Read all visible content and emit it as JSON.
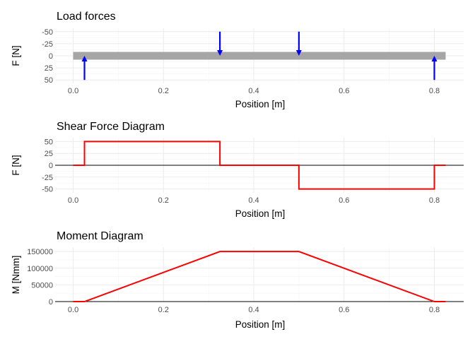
{
  "chart_data": [
    {
      "type": "beam-loads",
      "title": "Load forces",
      "xlabel": "Position [m]",
      "ylabel": "F [N]",
      "xlim": [
        -0.04,
        0.865
      ],
      "ylim": [
        -57,
        57
      ],
      "y_reversed": true,
      "x_ticks": [
        0.0,
        0.2,
        0.4,
        0.6,
        0.8
      ],
      "x_tick_labels": [
        "0.0",
        "0.2",
        "0.4",
        "0.6",
        "0.8"
      ],
      "y_ticks": [
        -50,
        -25,
        0,
        25,
        50
      ],
      "y_tick_labels": [
        "-50",
        "-25",
        "0",
        "25",
        "50"
      ],
      "beam": {
        "x_start": 0.0,
        "x_end": 0.825,
        "color": "#a6a6a6"
      },
      "arrow_color": "#0000ff",
      "forces": [
        {
          "x": 0.025,
          "F": 50
        },
        {
          "x": 0.325,
          "F": -50
        },
        {
          "x": 0.5,
          "F": -50
        },
        {
          "x": 0.8,
          "F": 50
        }
      ]
    },
    {
      "type": "line",
      "title": "Shear Force Diagram",
      "xlabel": "Position [m]",
      "ylabel": "F [N]",
      "xlim": [
        -0.04,
        0.865
      ],
      "ylim": [
        -58,
        58
      ],
      "x_ticks": [
        0.0,
        0.2,
        0.4,
        0.6,
        0.8
      ],
      "x_tick_labels": [
        "0.0",
        "0.2",
        "0.4",
        "0.6",
        "0.8"
      ],
      "y_ticks": [
        50,
        25,
        0,
        -25,
        -50
      ],
      "y_tick_labels": [
        "50",
        "25",
        "0",
        "-25",
        "-50"
      ],
      "line_color": "#ff0000",
      "x": [
        0.0,
        0.025,
        0.025,
        0.325,
        0.325,
        0.5,
        0.5,
        0.8,
        0.8,
        0.825
      ],
      "y": [
        0,
        0,
        50,
        50,
        0,
        0,
        -50,
        -50,
        0,
        0
      ]
    },
    {
      "type": "line",
      "title": "Moment Diagram",
      "xlabel": "Position [m]",
      "ylabel": "M [Nmm]",
      "xlim": [
        -0.04,
        0.865
      ],
      "ylim": [
        -2000,
        163000
      ],
      "x_ticks": [
        0.0,
        0.2,
        0.4,
        0.6,
        0.8
      ],
      "x_tick_labels": [
        "0.0",
        "0.2",
        "0.4",
        "0.6",
        "0.8"
      ],
      "y_ticks": [
        150000,
        100000,
        50000,
        0
      ],
      "y_tick_labels": [
        "150000",
        "100000",
        "50000",
        "0"
      ],
      "line_color": "#ff0000",
      "x": [
        0.0,
        0.025,
        0.325,
        0.5,
        0.8,
        0.825
      ],
      "y": [
        0,
        0,
        150000,
        150000,
        0,
        0
      ]
    }
  ]
}
